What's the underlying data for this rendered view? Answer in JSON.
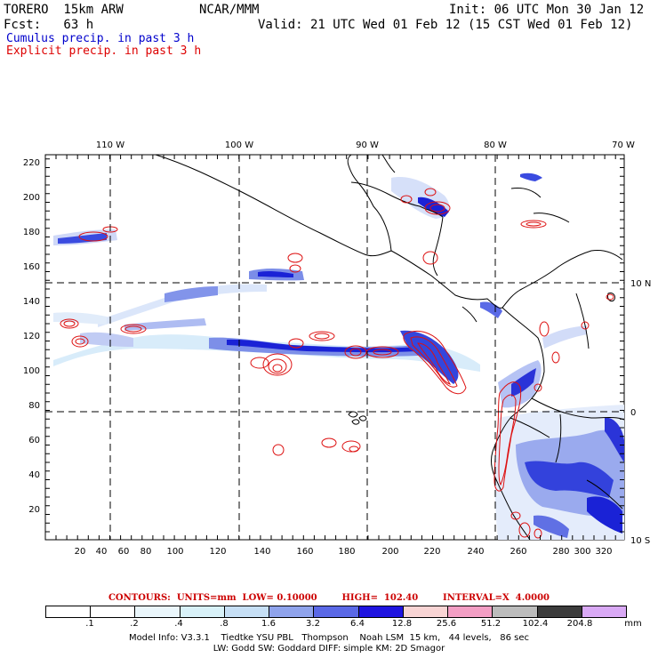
{
  "header": {
    "model": "TORERO  15km ARW",
    "center": "NCAR/MMM",
    "init": "Init: 06 UTC Mon 30 Jan 12",
    "fcst": "Fcst:   63 h",
    "valid": "Valid: 21 UTC Wed 01 Feb 12 (15 CST Wed 01 Feb 12)"
  },
  "legend": {
    "cumulus": "Cumulus precip. in past 3 h",
    "explicit": "Explicit precip. in past 3 h",
    "cumulus_color": "#0000cc",
    "explicit_color": "#dd0000"
  },
  "map": {
    "lon_labels": [
      "110 W",
      "100 W",
      "90 W",
      "80 W",
      "70 W"
    ],
    "lat_labels": [
      "10 N",
      "0",
      "10 S"
    ],
    "x_ticks": [
      "20",
      "40",
      "60",
      "80",
      "100",
      "120",
      "140",
      "160",
      "180",
      "200",
      "220",
      "240",
      "260",
      "280",
      "300",
      "320"
    ],
    "y_ticks": [
      "20",
      "40",
      "60",
      "80",
      "100",
      "120",
      "140",
      "160",
      "180",
      "200",
      "220"
    ],
    "coast_color": "#000000",
    "grid_color": "#000000"
  },
  "contours_text": "CONTOURS:  UNITS=mm  LOW= 0.10000        HIGH=  102.40        INTERVAL=X  4.0000",
  "colorbar": {
    "colors": [
      "#ffffff",
      "#ffffff",
      "#eaf6fb",
      "#d8f1f8",
      "#c6dff5",
      "#8fa3ec",
      "#5a68e6",
      "#1f14e0",
      "#f8d4d4",
      "#f39ec4",
      "#bcbcbc",
      "#3c3c3c",
      "#d9a9f5"
    ],
    "labels": [
      ".1",
      ".2",
      ".4",
      ".8",
      "1.6",
      "3.2",
      "6.4",
      "12.8",
      "25.6",
      "51.2",
      "102.4",
      "204.8"
    ],
    "units": "mm"
  },
  "model_info": {
    "line1": "Model Info: V3.3.1    Tiedtke YSU PBL   Thompson    Noah LSM  15 km,   44 levels,   86 sec",
    "line2": "LW: Godd SW: Goddard DIFF: simple KM: 2D Smagor"
  }
}
